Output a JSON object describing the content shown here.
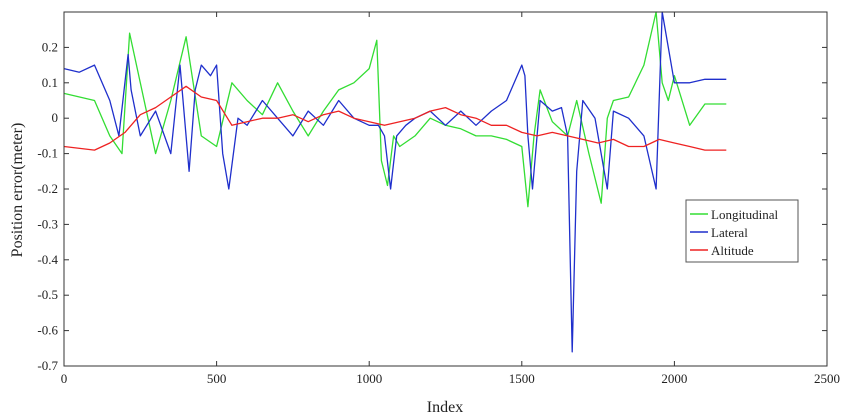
{
  "chart_data": {
    "type": "line",
    "title": "",
    "xlabel": "Index",
    "ylabel": "Position error(meter)",
    "xlim": [
      0,
      2500
    ],
    "ylim": [
      -0.7,
      0.3
    ],
    "xticks": [
      0,
      500,
      1000,
      1500,
      2000,
      2500
    ],
    "yticks": [
      0.2,
      0.1,
      0,
      -0.1,
      -0.2,
      -0.3,
      -0.4,
      -0.5,
      -0.6,
      -0.7
    ],
    "grid": false,
    "legend": "right-middle",
    "series": [
      {
        "name": "Longitudinal",
        "color": "#33dd33",
        "x": [
          0,
          100,
          150,
          190,
          215,
          250,
          300,
          350,
          400,
          450,
          500,
          550,
          600,
          650,
          700,
          750,
          800,
          850,
          900,
          950,
          1000,
          1025,
          1040,
          1060,
          1080,
          1100,
          1150,
          1200,
          1250,
          1300,
          1350,
          1400,
          1450,
          1500,
          1520,
          1540,
          1560,
          1600,
          1650,
          1680,
          1720,
          1760,
          1780,
          1800,
          1850,
          1900,
          1940,
          1960,
          1980,
          2000,
          2050,
          2100,
          2170
        ],
        "y": [
          0.07,
          0.05,
          -0.05,
          -0.1,
          0.24,
          0.1,
          -0.1,
          0.05,
          0.23,
          -0.05,
          -0.08,
          0.1,
          0.05,
          0.01,
          0.1,
          0.02,
          -0.05,
          0.02,
          0.08,
          0.1,
          0.14,
          0.22,
          -0.12,
          -0.19,
          -0.05,
          -0.08,
          -0.05,
          0.0,
          -0.02,
          -0.03,
          -0.05,
          -0.05,
          -0.06,
          -0.08,
          -0.25,
          -0.05,
          0.08,
          -0.01,
          -0.05,
          0.05,
          -0.1,
          -0.24,
          0.0,
          0.05,
          0.06,
          0.15,
          0.3,
          0.1,
          0.05,
          0.12,
          -0.02,
          0.04,
          0.04
        ]
      },
      {
        "name": "Lateral",
        "color": "#1f2fcc",
        "x": [
          0,
          50,
          100,
          150,
          180,
          210,
          220,
          250,
          300,
          350,
          380,
          410,
          430,
          450,
          480,
          500,
          520,
          540,
          570,
          600,
          650,
          700,
          750,
          800,
          850,
          900,
          950,
          1000,
          1030,
          1050,
          1070,
          1090,
          1120,
          1150,
          1200,
          1250,
          1300,
          1350,
          1400,
          1450,
          1500,
          1510,
          1520,
          1535,
          1560,
          1600,
          1630,
          1650,
          1665,
          1680,
          1700,
          1740,
          1780,
          1800,
          1850,
          1900,
          1940,
          1960,
          1980,
          2000,
          2050,
          2100,
          2170
        ],
        "y": [
          0.14,
          0.13,
          0.15,
          0.05,
          -0.05,
          0.18,
          0.08,
          -0.05,
          0.02,
          -0.1,
          0.15,
          -0.15,
          0.08,
          0.15,
          0.12,
          0.15,
          -0.1,
          -0.2,
          0.0,
          -0.02,
          0.05,
          0.0,
          -0.05,
          0.02,
          -0.02,
          0.05,
          0.0,
          -0.02,
          -0.02,
          -0.05,
          -0.2,
          -0.05,
          -0.02,
          0.0,
          0.02,
          -0.02,
          0.02,
          -0.02,
          0.02,
          0.05,
          0.15,
          0.12,
          -0.05,
          -0.2,
          0.05,
          0.02,
          0.03,
          -0.05,
          -0.66,
          -0.15,
          0.05,
          0.0,
          -0.2,
          0.02,
          0.0,
          -0.05,
          -0.2,
          0.3,
          0.2,
          0.1,
          0.1,
          0.11,
          0.11
        ]
      },
      {
        "name": "Altitude",
        "color": "#ee2222",
        "x": [
          0,
          100,
          150,
          200,
          250,
          300,
          350,
          400,
          450,
          500,
          550,
          600,
          650,
          700,
          750,
          800,
          850,
          900,
          950,
          1000,
          1050,
          1100,
          1150,
          1200,
          1250,
          1300,
          1350,
          1400,
          1450,
          1500,
          1550,
          1600,
          1650,
          1700,
          1750,
          1800,
          1850,
          1900,
          1950,
          2000,
          2050,
          2100,
          2170
        ],
        "y": [
          -0.08,
          -0.09,
          -0.07,
          -0.04,
          0.01,
          0.03,
          0.06,
          0.09,
          0.06,
          0.05,
          -0.02,
          -0.01,
          0.0,
          0.0,
          0.01,
          -0.01,
          0.01,
          0.02,
          0.0,
          -0.01,
          -0.02,
          -0.01,
          0.0,
          0.02,
          0.03,
          0.01,
          0.0,
          -0.02,
          -0.02,
          -0.04,
          -0.05,
          -0.04,
          -0.05,
          -0.06,
          -0.07,
          -0.06,
          -0.08,
          -0.08,
          -0.06,
          -0.07,
          -0.08,
          -0.09,
          -0.09
        ]
      }
    ]
  }
}
